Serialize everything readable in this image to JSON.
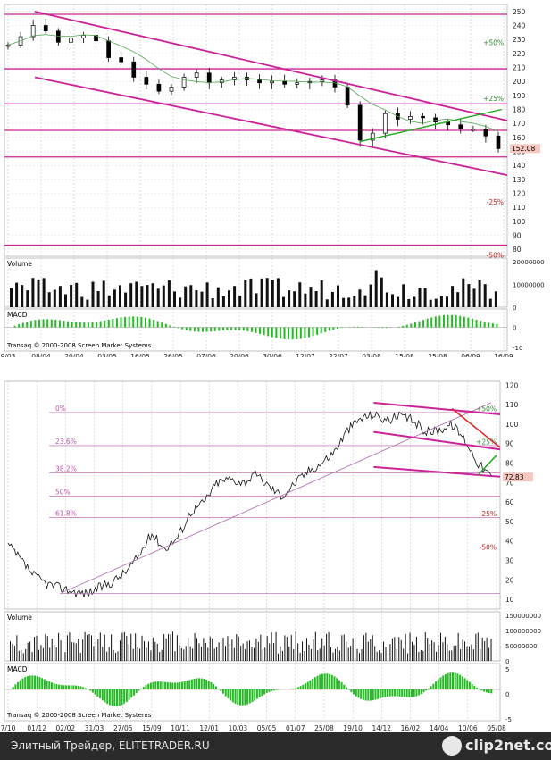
{
  "chart_data": [
    {
      "type": "candlestick",
      "title": "",
      "price_axis": [
        250,
        240,
        230,
        220,
        210,
        200,
        190,
        180,
        170,
        160,
        150,
        140,
        130,
        120,
        110,
        100,
        90,
        80
      ],
      "price_ylim": [
        75,
        255
      ],
      "date_labels": [
        "9/03",
        "08/04",
        "20/04",
        "03/05",
        "16/05",
        "26/05",
        "07/06",
        "20/06",
        "30/06",
        "12/07",
        "22/07",
        "03/08",
        "15/08",
        "25/08",
        "06/09",
        "16/09"
      ],
      "percent_labels": [
        {
          "text": "+50%",
          "price": 228,
          "color": "#2e8b2e"
        },
        {
          "text": "+25%",
          "price": 188,
          "color": "#2e8b2e"
        },
        {
          "text": "-25%",
          "price": 114,
          "color": "#cc2222"
        },
        {
          "text": "-50%",
          "price": 76,
          "color": "#cc2222"
        }
      ],
      "horizontal_levels": [
        248,
        209,
        184,
        165,
        146,
        83
      ],
      "last_price": "152.08",
      "close_series": [
        226,
        232,
        240,
        236,
        228,
        231,
        233,
        229,
        217,
        214,
        203,
        198,
        193,
        196,
        203,
        206,
        199,
        201,
        203,
        201,
        199,
        200,
        198,
        199,
        200,
        201,
        196,
        183,
        158,
        163,
        177,
        173,
        175,
        174,
        171,
        169,
        166,
        166,
        161,
        152
      ],
      "volume_panel": {
        "title": "Volume",
        "axis": [
          "20000000",
          "10000000",
          "0"
        ]
      },
      "macd_panel": {
        "title": "MACD",
        "axis": [
          "0",
          "-10"
        ],
        "credit": "Transaq © 2000-2008 Screen Market Systems"
      }
    },
    {
      "type": "line",
      "title": "",
      "price_axis": [
        120,
        110,
        100,
        90,
        80,
        70,
        60,
        50,
        40,
        30,
        20,
        10
      ],
      "price_ylim": [
        5,
        122
      ],
      "date_labels": [
        "7/10",
        "01/12",
        "02/02",
        "31/03",
        "27/05",
        "15/09",
        "10/11",
        "12/01",
        "10/03",
        "05/05",
        "01/07",
        "25/08",
        "19/10",
        "14/12",
        "16/02",
        "14/04",
        "10/06",
        "05/08"
      ],
      "fib_labels": [
        {
          "text": "0%",
          "price": 106
        },
        {
          "text": "23.6%",
          "price": 89
        },
        {
          "text": "38.2%",
          "price": 75
        },
        {
          "text": "50%",
          "price": 63
        },
        {
          "text": "61.8%",
          "price": 52
        }
      ],
      "percent_labels": [
        {
          "text": "+50%",
          "price": 108,
          "color": "#2e8b2e"
        },
        {
          "text": "+25%",
          "price": 91,
          "color": "#2e8b2e"
        },
        {
          "text": "-25%",
          "price": 54,
          "color": "#cc2222"
        },
        {
          "text": "-50%",
          "price": 37,
          "color": "#cc2222"
        }
      ],
      "last_price": "72.83",
      "close_series": [
        38,
        30,
        22,
        18,
        16,
        14,
        13,
        16,
        19,
        24,
        32,
        44,
        36,
        42,
        55,
        60,
        70,
        72,
        70,
        74,
        68,
        63,
        70,
        76,
        80,
        86,
        97,
        103,
        105,
        102,
        104,
        102,
        96,
        97,
        100,
        92,
        80,
        73
      ],
      "volume_panel": {
        "title": "Volume",
        "axis": [
          "150000000",
          "100000000",
          "50000000",
          "0"
        ]
      },
      "macd_panel": {
        "title": "MACD",
        "axis": [
          "5",
          "0",
          "-5"
        ],
        "credit": "Transaq © 2000-2008 Screen Market Systems"
      }
    }
  ],
  "footer": {
    "text": "Элитный Трейдер, ELITETRADER.RU",
    "logo": "clip2net.com"
  },
  "colors": {
    "magenta": "#cc2299",
    "green": "#22aa22",
    "red": "#dd2222",
    "grid": "#bbbbbb"
  }
}
